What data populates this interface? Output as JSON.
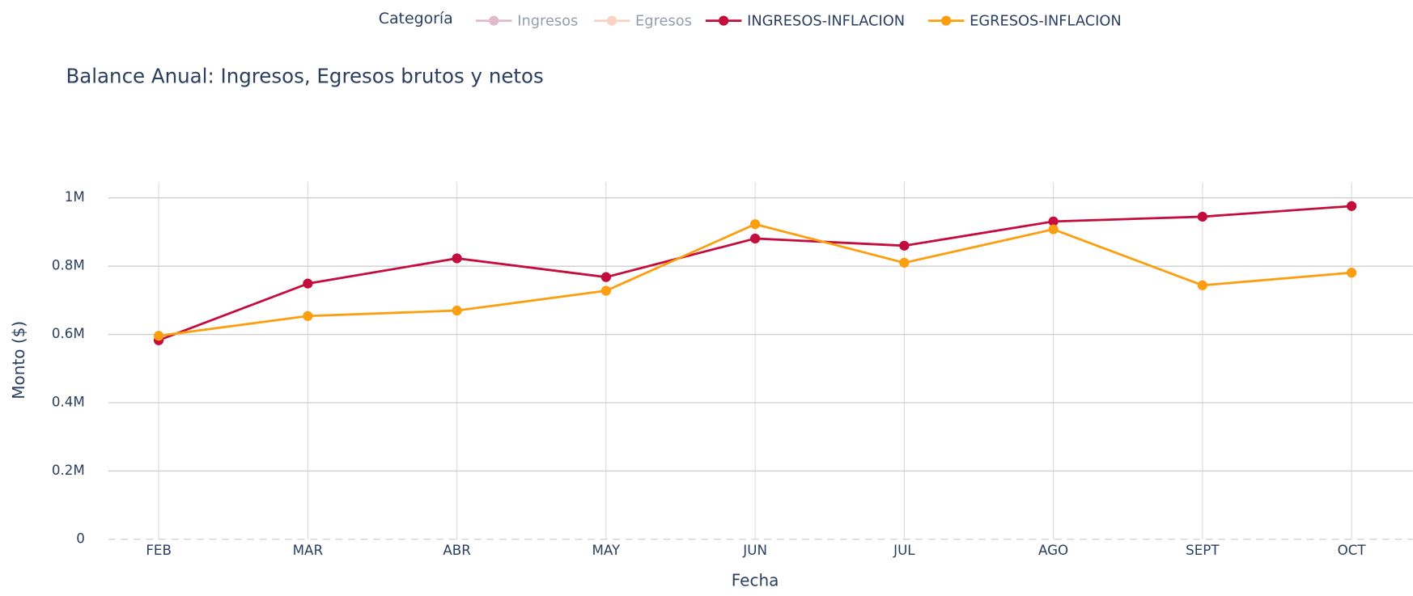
{
  "chart_data": {
    "type": "line",
    "title": "Balance Anual: Ingresos, Egresos brutos y netos",
    "x_label": "Fecha",
    "y_label": "Monto ($)",
    "legend_title": "Categoría",
    "categories": [
      "FEB",
      "MAR",
      "ABR",
      "MAY",
      "JUN",
      "JUL",
      "AGO",
      "SEPT",
      "OCT"
    ],
    "series": [
      {
        "name": "Ingresos",
        "color": "#c27a9a",
        "visible": false,
        "values": [
          null,
          null,
          null,
          null,
          null,
          null,
          null,
          null,
          null
        ]
      },
      {
        "name": "Egresos",
        "color": "#f9a98e",
        "visible": false,
        "values": [
          null,
          null,
          null,
          null,
          null,
          null,
          null,
          null,
          null
        ]
      },
      {
        "name": "INGRESOS-INFLACION",
        "color": "#c40c3d",
        "visible": true,
        "values": [
          583000,
          749000,
          823000,
          768000,
          881000,
          860000,
          931000,
          945000,
          976000
        ]
      },
      {
        "name": "EGRESOS-INFLACION",
        "color": "#fb9e0f",
        "visible": true,
        "values": [
          596000,
          654000,
          670000,
          728000,
          923000,
          810000,
          908000,
          744000,
          781000
        ]
      }
    ],
    "ylim": [
      0,
      1047000
    ],
    "yticks": [
      0,
      {
        "value": 200000,
        "label": "0.2M"
      },
      {
        "value": 400000,
        "label": "0.4M"
      },
      {
        "value": 600000,
        "label": "0.6M"
      },
      {
        "value": 800000,
        "label": "0.8M"
      },
      {
        "value": 1000000,
        "label": "1M"
      }
    ],
    "grid": true,
    "legend_position": "top"
  }
}
